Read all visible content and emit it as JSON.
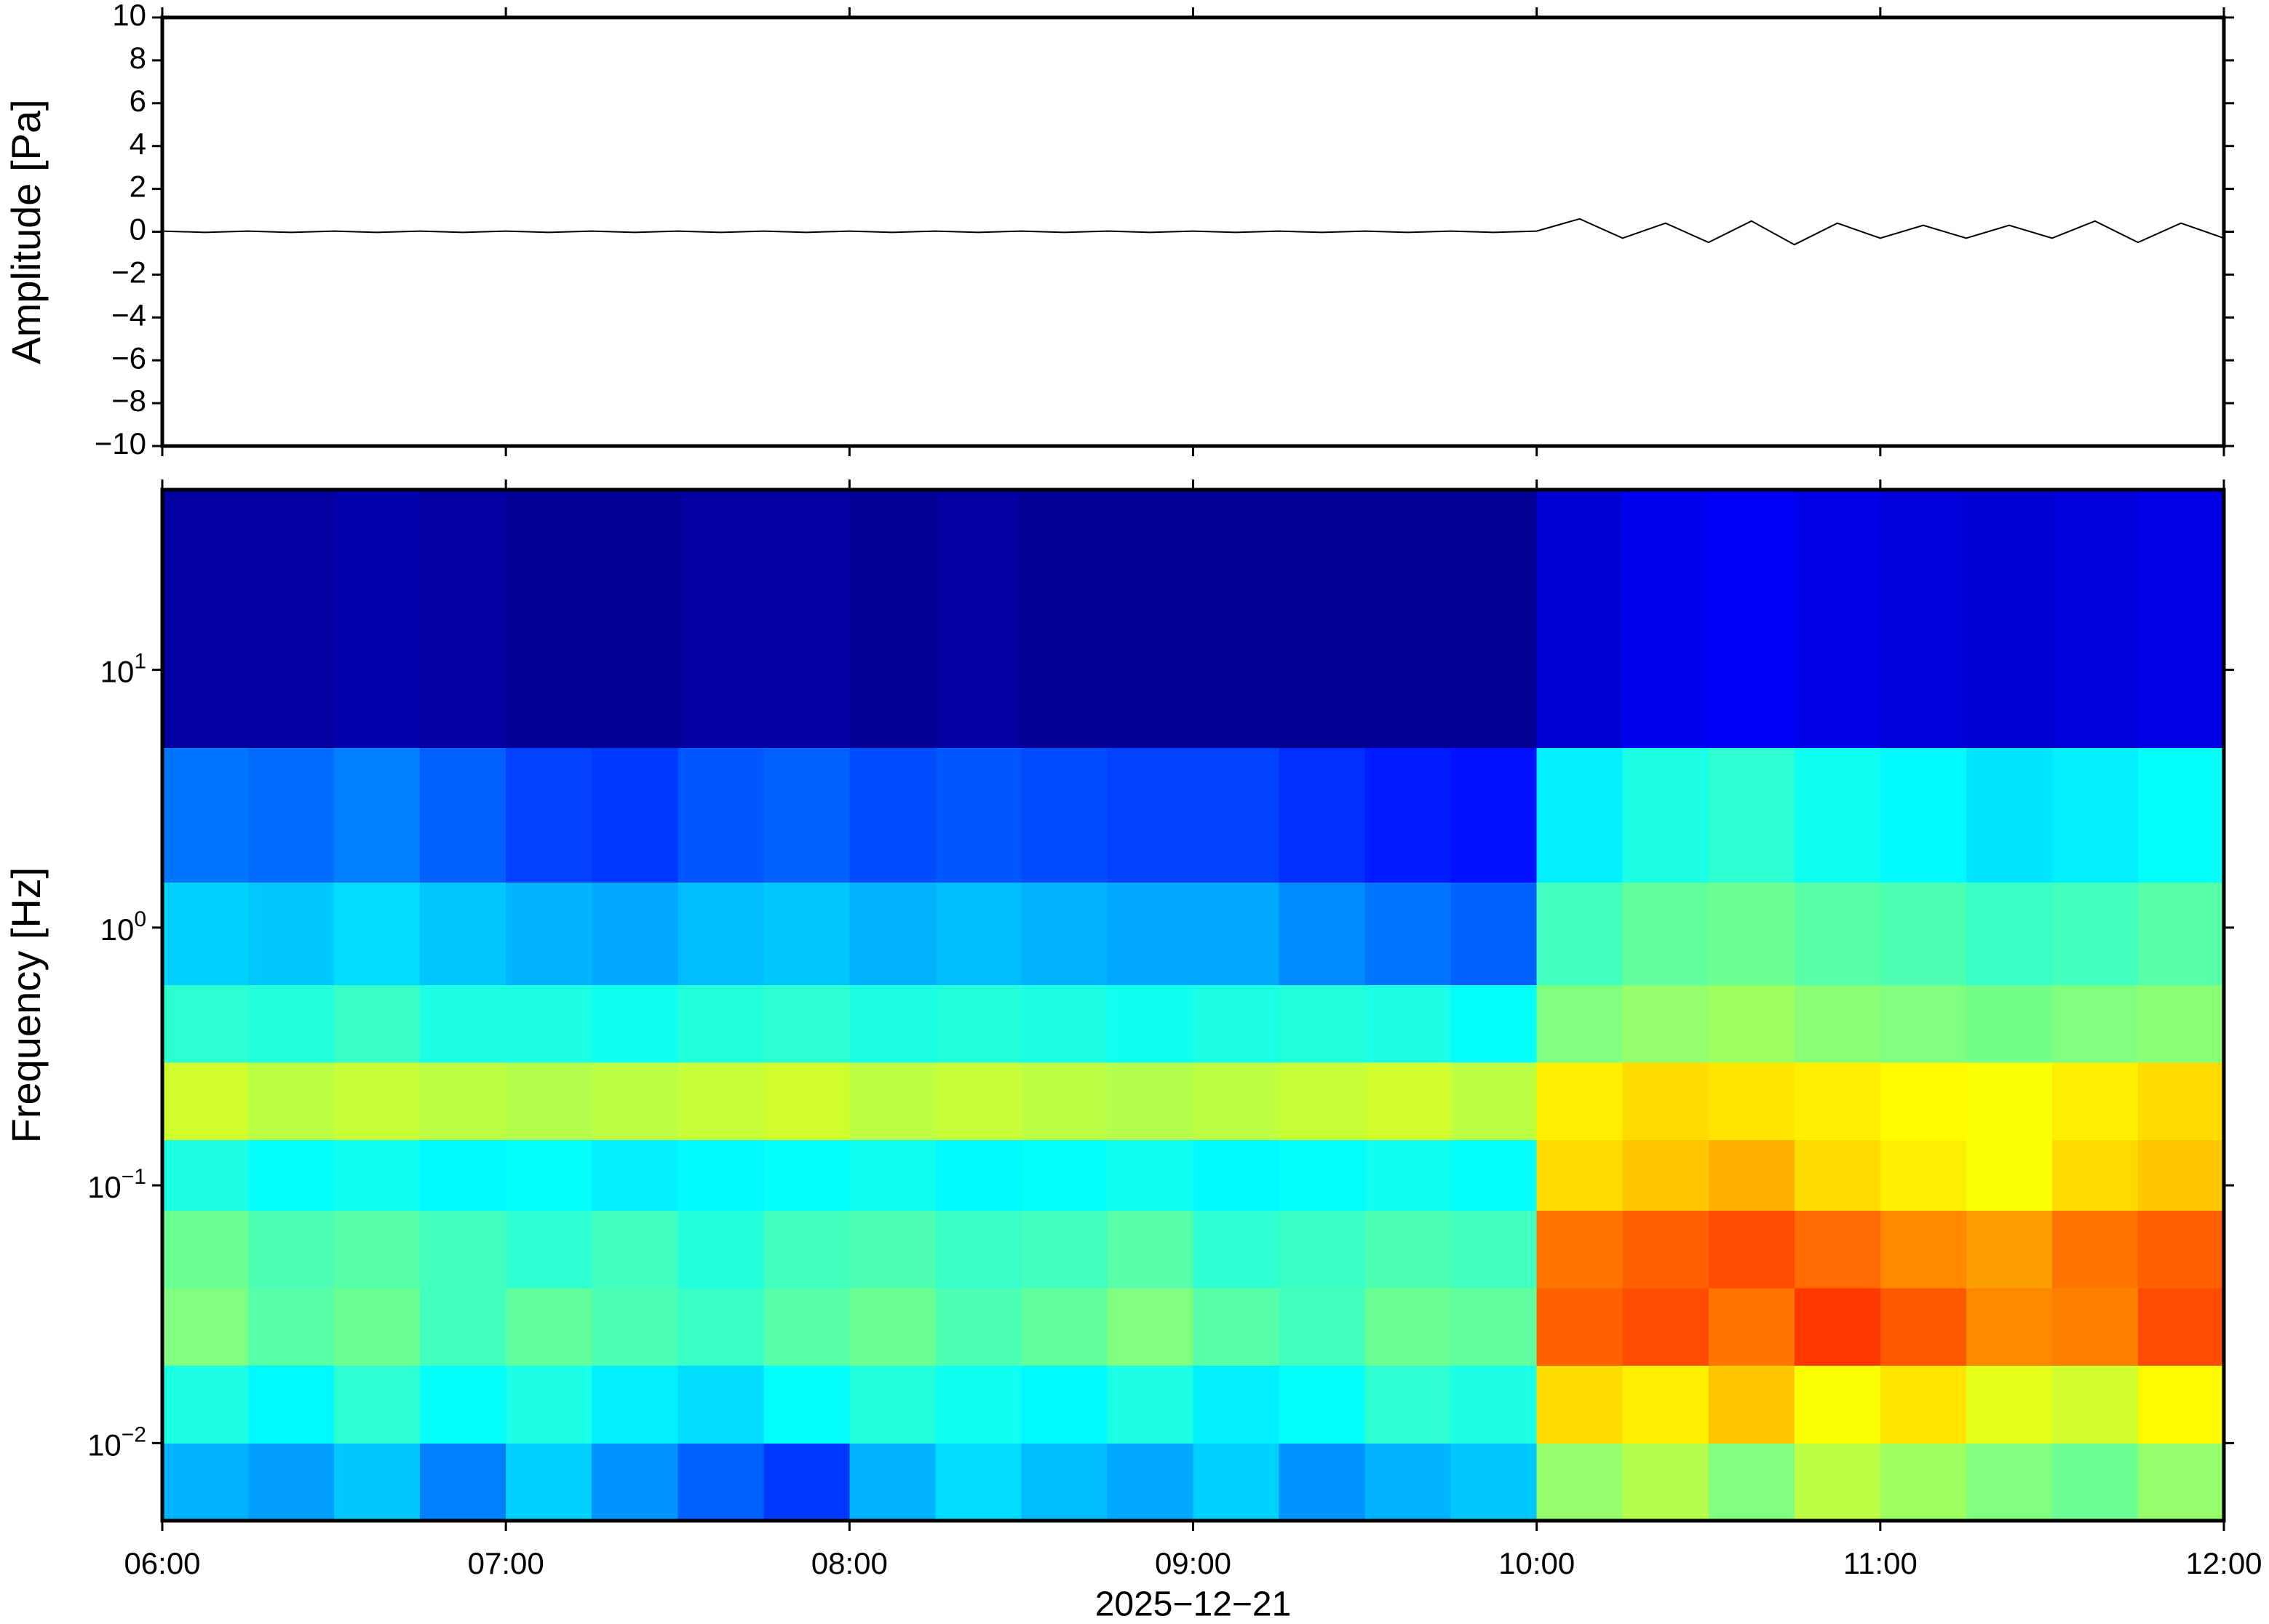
{
  "chart_data": [
    {
      "type": "line",
      "ylabel": "Amplitude [Pa]",
      "color": "#000000",
      "xlim": [
        6,
        12
      ],
      "xticks": [
        6,
        7,
        8,
        9,
        10,
        11,
        12
      ],
      "ylim": [
        -10,
        10
      ],
      "yticks": [
        {
          "value": -10,
          "label": "−10"
        },
        {
          "value": -8,
          "label": "−8"
        },
        {
          "value": -6,
          "label": "−6"
        },
        {
          "value": -4,
          "label": "−4"
        },
        {
          "value": -2,
          "label": "−2"
        },
        0,
        2,
        4,
        6,
        8,
        10
      ],
      "x": [
        6,
        6.125,
        6.25,
        6.375,
        6.5,
        6.625,
        6.75,
        6.875,
        7,
        7.125,
        7.25,
        7.375,
        7.5,
        7.625,
        7.75,
        7.875,
        8,
        8.125,
        8.25,
        8.375,
        8.5,
        8.625,
        8.75,
        8.875,
        9,
        9.125,
        9.25,
        9.375,
        9.5,
        9.625,
        9.75,
        9.875,
        10,
        10.125,
        10.25,
        10.375,
        10.5,
        10.625,
        10.75,
        10.875,
        11,
        11.125,
        11.25,
        11.375,
        11.5,
        11.625,
        11.75,
        11.875,
        12
      ],
      "values": [
        0.03,
        -0.03,
        0.03,
        -0.03,
        0.03,
        -0.03,
        0.03,
        -0.03,
        0.03,
        -0.03,
        0.03,
        -0.03,
        0.03,
        -0.03,
        0.03,
        -0.03,
        0.03,
        -0.03,
        0.03,
        -0.03,
        0.03,
        -0.03,
        0.03,
        -0.03,
        0.03,
        -0.03,
        0.03,
        -0.03,
        0.03,
        -0.03,
        0.03,
        -0.03,
        0.03,
        0.6,
        -0.3,
        0.4,
        -0.5,
        0.5,
        -0.6,
        0.4,
        -0.3,
        0.3,
        -0.3,
        0.3,
        -0.3,
        0.5,
        -0.5,
        0.4,
        -0.3
      ]
    },
    {
      "type": "heatmap",
      "ylabel": "Frequency [Hz]",
      "xlabel": "2025−12−21",
      "yscale": "log",
      "xlim": [
        6,
        12
      ],
      "xticks": [
        {
          "value": 6,
          "label": "06:00"
        },
        {
          "value": 7,
          "label": "07:00"
        },
        {
          "value": 8,
          "label": "08:00"
        },
        {
          "value": 9,
          "label": "09:00"
        },
        {
          "value": 10,
          "label": "10:00"
        },
        {
          "value": 11,
          "label": "11:00"
        },
        {
          "value": 12,
          "label": "12:00"
        }
      ],
      "ylim": [
        0.005,
        50
      ],
      "yticks": [
        {
          "value": 0.01,
          "label": "10",
          "exponent": "−2"
        },
        {
          "value": 0.1,
          "label": "10",
          "exponent": "−1"
        },
        {
          "value": 1,
          "label": "10",
          "exponent": "0"
        },
        {
          "value": 10,
          "label": "10",
          "exponent": "1"
        }
      ],
      "xbins": [
        6,
        6.25,
        6.5,
        6.75,
        7,
        7.25,
        7.5,
        7.75,
        8,
        8.25,
        8.5,
        8.75,
        9,
        9.25,
        9.5,
        9.75,
        10,
        10.25,
        10.5,
        10.75,
        11,
        11.25,
        11.5,
        11.75,
        12
      ],
      "ybins": [
        0.005,
        0.01,
        0.02,
        0.04,
        0.08,
        0.15,
        0.3,
        0.6,
        1.5,
        5,
        50
      ],
      "values": [
        [
          0.3,
          0.28,
          0.32,
          0.25,
          0.33,
          0.27,
          0.22,
          0.18,
          0.3,
          0.34,
          0.31,
          0.29,
          0.33,
          0.27,
          0.3,
          0.32,
          0.52,
          0.55,
          0.5,
          0.56,
          0.53,
          0.5,
          0.48,
          0.52
        ],
        [
          0.4,
          0.37,
          0.42,
          0.38,
          0.4,
          0.36,
          0.34,
          0.38,
          0.41,
          0.39,
          0.37,
          0.4,
          0.36,
          0.38,
          0.42,
          0.4,
          0.66,
          0.64,
          0.68,
          0.62,
          0.65,
          0.6,
          0.58,
          0.63
        ],
        [
          0.5,
          0.46,
          0.48,
          0.44,
          0.47,
          0.45,
          0.43,
          0.46,
          0.48,
          0.45,
          0.47,
          0.5,
          0.46,
          0.44,
          0.48,
          0.47,
          0.78,
          0.8,
          0.76,
          0.82,
          0.79,
          0.74,
          0.75,
          0.8
        ],
        [
          0.48,
          0.45,
          0.46,
          0.44,
          0.42,
          0.44,
          0.41,
          0.44,
          0.45,
          0.43,
          0.44,
          0.46,
          0.42,
          0.43,
          0.45,
          0.44,
          0.76,
          0.78,
          0.8,
          0.77,
          0.74,
          0.72,
          0.76,
          0.78
        ],
        [
          0.4,
          0.38,
          0.39,
          0.37,
          0.38,
          0.36,
          0.37,
          0.38,
          0.39,
          0.37,
          0.38,
          0.39,
          0.37,
          0.38,
          0.39,
          0.38,
          0.66,
          0.68,
          0.7,
          0.66,
          0.64,
          0.62,
          0.66,
          0.68
        ],
        [
          0.58,
          0.56,
          0.57,
          0.56,
          0.55,
          0.56,
          0.57,
          0.58,
          0.56,
          0.57,
          0.56,
          0.55,
          0.56,
          0.57,
          0.58,
          0.56,
          0.64,
          0.66,
          0.65,
          0.64,
          0.63,
          0.62,
          0.64,
          0.66
        ],
        [
          0.42,
          0.41,
          0.43,
          0.4,
          0.4,
          0.39,
          0.41,
          0.42,
          0.4,
          0.41,
          0.4,
          0.39,
          0.4,
          0.41,
          0.4,
          0.38,
          0.5,
          0.52,
          0.53,
          0.51,
          0.5,
          0.49,
          0.5,
          0.51
        ],
        [
          0.33,
          0.32,
          0.34,
          0.32,
          0.3,
          0.29,
          0.31,
          0.32,
          0.3,
          0.31,
          0.3,
          0.29,
          0.29,
          0.26,
          0.24,
          0.22,
          0.44,
          0.47,
          0.48,
          0.46,
          0.45,
          0.43,
          0.44,
          0.46
        ],
        [
          0.24,
          0.23,
          0.25,
          0.22,
          0.19,
          0.18,
          0.21,
          0.22,
          0.2,
          0.21,
          0.2,
          0.19,
          0.19,
          0.17,
          0.15,
          0.14,
          0.36,
          0.4,
          0.42,
          0.39,
          0.37,
          0.35,
          0.36,
          0.38
        ],
        [
          0.03,
          0.03,
          0.04,
          0.03,
          0.02,
          0.02,
          0.03,
          0.03,
          0.02,
          0.03,
          0.02,
          0.02,
          0.02,
          0.02,
          0.02,
          0.02,
          0.08,
          0.11,
          0.12,
          0.1,
          0.09,
          0.08,
          0.09,
          0.1
        ]
      ]
    }
  ]
}
